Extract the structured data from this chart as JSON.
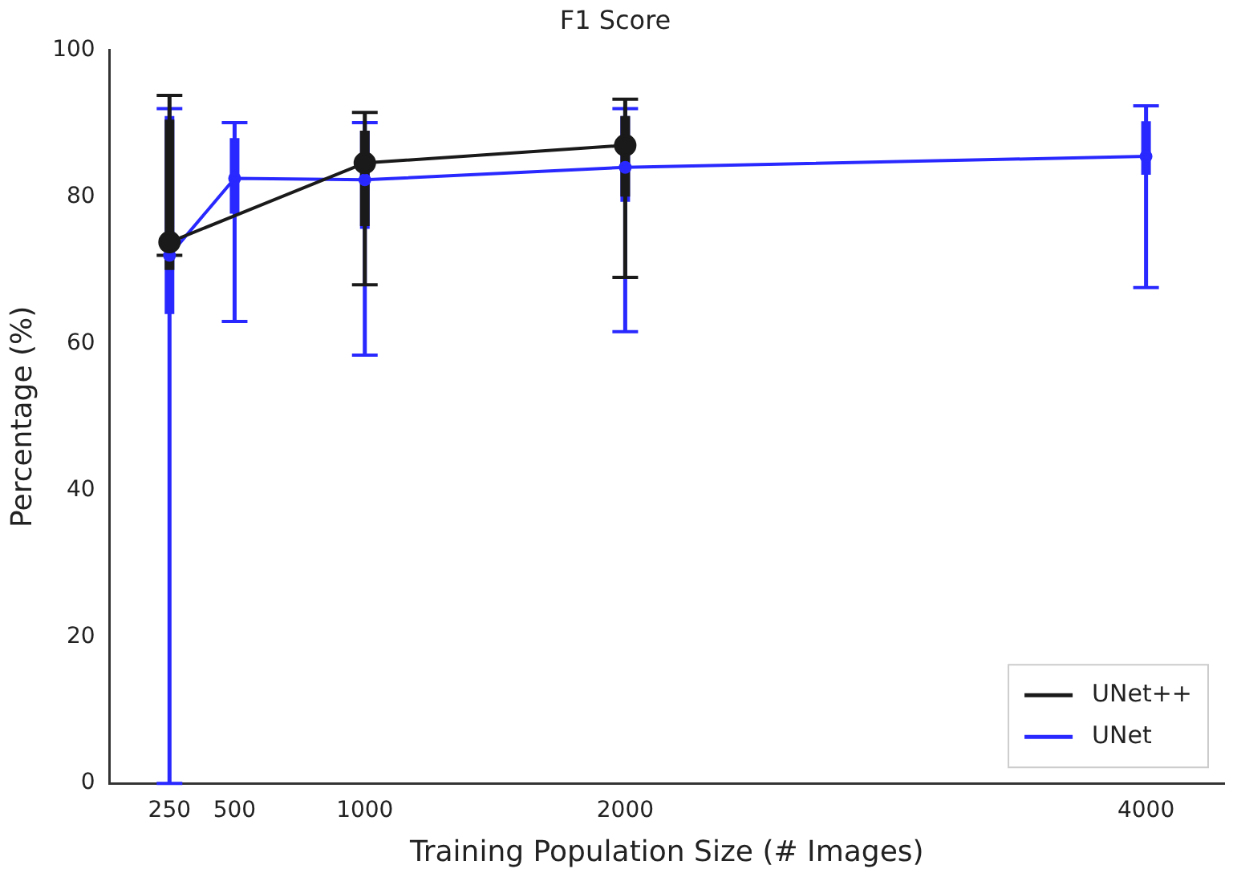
{
  "chart_data": {
    "type": "line",
    "title": "F1 Score",
    "xlabel": "Training Population Size (# Images)",
    "ylabel": "Percentage (%)",
    "xlim": [
      20,
      4300
    ],
    "xticks": [
      250,
      500,
      1000,
      2000,
      4000
    ],
    "ylim": [
      0,
      100
    ],
    "yticks": [
      0,
      20,
      40,
      60,
      80,
      100
    ],
    "grid": false,
    "legend": "bottom right",
    "series": [
      {
        "name": "UNet++",
        "color": "#1a1a1a",
        "marker": "circle",
        "x": [
          250,
          1000,
          2000
        ],
        "values": [
          73.8,
          84.6,
          87
        ],
        "errors": [
          [
            72,
            93.8
          ],
          [
            68,
            91.5
          ],
          [
            69,
            93.3
          ]
        ]
      },
      {
        "color": "#1a1a1a",
        "type": "scatter",
        "marker": "circle",
        "x": [
          250,
          1000,
          2000
        ],
        "values": [
          73.8,
          84.6,
          87
        ],
        "errors": [
          [
            70,
            90.5
          ],
          [
            76,
            89
          ],
          [
            80,
            91
          ]
        ]
      },
      {
        "name": "UNet",
        "color": "#2828ff",
        "marker": "none",
        "x": [
          250,
          500,
          1000,
          2000,
          4000
        ],
        "values": [
          72,
          82.5,
          82.3,
          84,
          85.5
        ],
        "errors": [
          [
            0,
            92
          ],
          [
            63,
            90.1
          ],
          [
            58.4,
            90.1
          ],
          [
            61.6,
            92
          ],
          [
            67.6,
            92.4
          ]
        ]
      },
      {
        "color": "#2828ff",
        "type": "scatter",
        "marker": "circle",
        "x": [
          250,
          500,
          1000,
          2000,
          4000
        ],
        "values": [
          72,
          82.5,
          82.3,
          84,
          85.5
        ],
        "errors": [
          [
            64,
            91
          ],
          [
            77.7,
            88
          ],
          [
            75.6,
            89
          ],
          [
            79.3,
            91
          ],
          [
            83,
            90.3
          ]
        ]
      }
    ]
  }
}
